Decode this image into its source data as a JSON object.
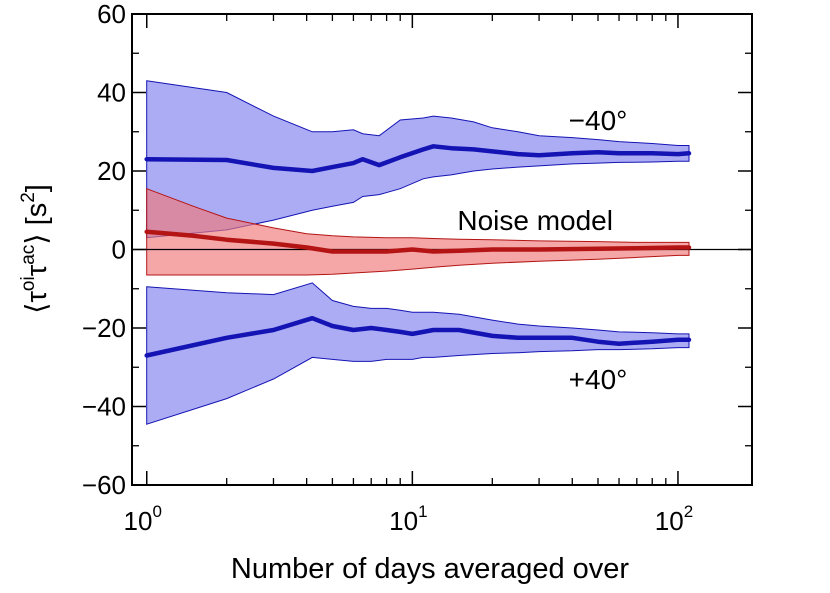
{
  "chart_data": {
    "type": "line",
    "title": "",
    "xlabel": "Number of days averaged over",
    "ylabel": {
      "open": "⟨",
      "tau1": "τ",
      "sup1": "oi",
      "tau2": "τ",
      "sup2": "ac",
      "close": "⟩",
      "unit_open": " [s",
      "unit_exp": "2",
      "unit_close": "]"
    },
    "xscale": "log",
    "xlim": [
      0.88,
      190
    ],
    "ylim": [
      -60,
      60
    ],
    "xticks": [
      {
        "value": 1,
        "base": "10",
        "exp": "0"
      },
      {
        "value": 10,
        "base": "10",
        "exp": "1"
      },
      {
        "value": 100,
        "base": "10",
        "exp": "2"
      }
    ],
    "yticks": [
      {
        "value": -60,
        "label": "−60"
      },
      {
        "value": -40,
        "label": "−40"
      },
      {
        "value": -20,
        "label": "−20"
      },
      {
        "value": 0,
        "label": "0"
      },
      {
        "value": 20,
        "label": "20"
      },
      {
        "value": 40,
        "label": "40"
      },
      {
        "value": 60,
        "label": "60"
      }
    ],
    "zero_line": true,
    "series": [
      {
        "name": "−40°",
        "color": "#1414b4",
        "band_color": "#8080f0",
        "x": [
          1,
          2,
          3,
          4.2,
          5,
          6,
          6.5,
          7.5,
          9,
          11,
          12,
          14,
          17,
          20,
          25,
          30,
          40,
          50,
          60,
          80,
          100,
          110
        ],
        "mean": [
          23,
          22.8,
          20.8,
          20,
          21,
          22,
          23,
          21.5,
          23.5,
          25.5,
          26.3,
          25.8,
          25.5,
          25,
          24.3,
          24,
          24.5,
          24.8,
          24.5,
          24.5,
          24.3,
          24.5
        ],
        "upper": [
          43,
          40,
          34,
          30,
          30,
          30.5,
          29.5,
          29,
          33,
          33.5,
          34,
          33.5,
          32.5,
          31,
          30,
          29,
          28.5,
          28,
          27.5,
          27,
          26.5,
          26.5
        ],
        "lower": [
          3,
          5,
          7.5,
          10,
          11,
          12,
          13.5,
          14,
          15.5,
          18,
          18.5,
          19,
          20,
          20.5,
          21,
          21.3,
          21.8,
          22,
          22.2,
          22.3,
          22.5,
          22.5
        ]
      },
      {
        "name": "Noise model",
        "color": "#b41414",
        "band_color": "#f07878",
        "x": [
          1,
          1.5,
          2,
          3,
          4,
          5,
          6,
          8,
          10,
          12,
          15,
          20,
          30,
          50,
          70,
          100,
          110
        ],
        "mean": [
          4.5,
          3.5,
          2.5,
          1.5,
          0.5,
          -0.5,
          -0.5,
          -0.5,
          0,
          -0.5,
          -0.3,
          0,
          0,
          0.2,
          0.3,
          0.5,
          0.5
        ],
        "upper": [
          15.5,
          11,
          8,
          5.5,
          4,
          3.5,
          3.2,
          3,
          3,
          2.8,
          2.6,
          2.5,
          2.2,
          2,
          1.8,
          1.8,
          1.8
        ],
        "lower": [
          -6.5,
          -6.5,
          -6.5,
          -6.5,
          -6.5,
          -6.3,
          -6,
          -5.5,
          -5,
          -4.5,
          -4,
          -3.5,
          -3,
          -2.5,
          -2,
          -1.5,
          -1.5
        ]
      },
      {
        "name": "+40°",
        "color": "#1414b4",
        "band_color": "#8080f0",
        "x": [
          1,
          2,
          3,
          4.2,
          5,
          6,
          7,
          8,
          9,
          10,
          11,
          12,
          15,
          20,
          25,
          30,
          40,
          50,
          60,
          80,
          100,
          110
        ],
        "mean": [
          -27,
          -22.5,
          -20.5,
          -17.5,
          -19.5,
          -20.5,
          -20,
          -20.5,
          -21,
          -21.5,
          -21,
          -20.5,
          -20.5,
          -22,
          -22.5,
          -22.5,
          -22.5,
          -23.5,
          -24,
          -23.5,
          -23,
          -23
        ],
        "upper": [
          -9.5,
          -11,
          -11.5,
          -8.5,
          -13,
          -14.5,
          -15,
          -15,
          -15.5,
          -16,
          -16,
          -16,
          -16.5,
          -18,
          -19,
          -19.5,
          -20,
          -20.5,
          -21,
          -21.2,
          -21.5,
          -21.5
        ],
        "lower": [
          -44.5,
          -38,
          -33,
          -27.5,
          -28,
          -28.5,
          -28.5,
          -28,
          -28,
          -28,
          -27.5,
          -27.5,
          -27,
          -26.5,
          -26.3,
          -26,
          -25.8,
          -25.5,
          -25.5,
          -25.3,
          -25,
          -25
        ]
      }
    ],
    "annotations": [
      {
        "text": "−40°",
        "x": 50,
        "y": 33
      },
      {
        "text": "Noise model",
        "x": 29,
        "y": 7.5
      },
      {
        "text": "+40°",
        "x": 50,
        "y": -33
      }
    ]
  }
}
